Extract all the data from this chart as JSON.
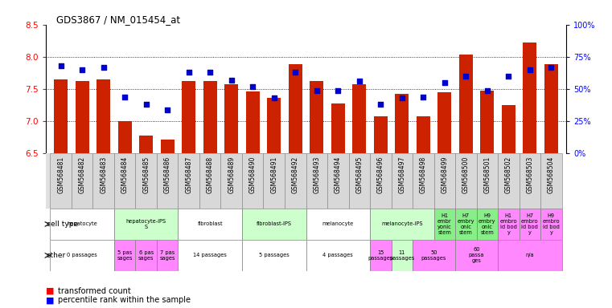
{
  "title": "GDS3867 / NM_015454_at",
  "samples": [
    "GSM568481",
    "GSM568482",
    "GSM568483",
    "GSM568484",
    "GSM568485",
    "GSM568486",
    "GSM568487",
    "GSM568488",
    "GSM568489",
    "GSM568490",
    "GSM568491",
    "GSM568492",
    "GSM568493",
    "GSM568494",
    "GSM568495",
    "GSM568496",
    "GSM568497",
    "GSM568498",
    "GSM568499",
    "GSM568500",
    "GSM568501",
    "GSM568502",
    "GSM568503",
    "GSM568504"
  ],
  "bar_values": [
    7.65,
    7.62,
    7.65,
    7.0,
    6.78,
    6.72,
    7.62,
    7.62,
    7.58,
    7.46,
    7.36,
    7.88,
    7.62,
    7.28,
    7.57,
    7.08,
    7.42,
    7.08,
    7.45,
    8.03,
    7.48,
    7.25,
    8.22,
    7.88
  ],
  "pct_vals": [
    68,
    65,
    67,
    44,
    38,
    34,
    63,
    63,
    57,
    52,
    43,
    63,
    49,
    49,
    56,
    38,
    43,
    44,
    55,
    60,
    49,
    60,
    65,
    67
  ],
  "ylim": [
    6.5,
    8.5
  ],
  "yticks": [
    6.5,
    7.0,
    7.5,
    8.0,
    8.5
  ],
  "bar_color": "#CC2200",
  "dot_color": "#0000CC",
  "right_yticks_pct": [
    0,
    25,
    50,
    75,
    100
  ],
  "right_ylabels": [
    "0%",
    "25%",
    "50%",
    "75%",
    "100%"
  ],
  "cell_groups": [
    {
      "label": "hepatocyte",
      "start": 0,
      "end": 2,
      "color": "#ffffff"
    },
    {
      "label": "hepatocyte-iPS\nS",
      "start": 3,
      "end": 5,
      "color": "#ccffcc"
    },
    {
      "label": "fibroblast",
      "start": 6,
      "end": 8,
      "color": "#ffffff"
    },
    {
      "label": "fibroblast-IPS",
      "start": 9,
      "end": 11,
      "color": "#ccffcc"
    },
    {
      "label": "melanocyte",
      "start": 12,
      "end": 14,
      "color": "#ffffff"
    },
    {
      "label": "melanocyte-IPS",
      "start": 15,
      "end": 17,
      "color": "#ccffcc"
    },
    {
      "label": "H1\nembr\nyonic\nstem",
      "start": 18,
      "end": 18,
      "color": "#88ee88"
    },
    {
      "label": "H7\nembry\nonic\nstem",
      "start": 19,
      "end": 19,
      "color": "#88ee88"
    },
    {
      "label": "H9\nembry\nonic\nstem",
      "start": 20,
      "end": 20,
      "color": "#88ee88"
    },
    {
      "label": "H1\nembro\nid bod\ny",
      "start": 21,
      "end": 21,
      "color": "#ff88ff"
    },
    {
      "label": "H7\nembro\nid bod\ny",
      "start": 22,
      "end": 22,
      "color": "#ff88ff"
    },
    {
      "label": "H9\nembro\nid bod\ny",
      "start": 23,
      "end": 23,
      "color": "#ff88ff"
    }
  ],
  "other_groups": [
    {
      "label": "0 passages",
      "start": 0,
      "end": 2,
      "color": "#ffffff"
    },
    {
      "label": "5 pas\nsages",
      "start": 3,
      "end": 3,
      "color": "#ff88ff"
    },
    {
      "label": "6 pas\nsages",
      "start": 4,
      "end": 4,
      "color": "#ff88ff"
    },
    {
      "label": "7 pas\nsages",
      "start": 5,
      "end": 5,
      "color": "#ff88ff"
    },
    {
      "label": "14 passages",
      "start": 6,
      "end": 8,
      "color": "#ffffff"
    },
    {
      "label": "5 passages",
      "start": 9,
      "end": 11,
      "color": "#ffffff"
    },
    {
      "label": "4 passages",
      "start": 12,
      "end": 14,
      "color": "#ffffff"
    },
    {
      "label": "15\npassages",
      "start": 15,
      "end": 15,
      "color": "#ff88ff"
    },
    {
      "label": "11\npassages",
      "start": 16,
      "end": 16,
      "color": "#ccffcc"
    },
    {
      "label": "50\npassages",
      "start": 17,
      "end": 18,
      "color": "#ff88ff"
    },
    {
      "label": "60\npassa\nges",
      "start": 19,
      "end": 20,
      "color": "#ff88ff"
    },
    {
      "label": "n/a",
      "start": 21,
      "end": 23,
      "color": "#ff88ff"
    }
  ]
}
